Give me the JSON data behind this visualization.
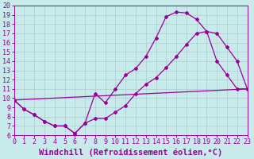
{
  "xlabel": "Windchill (Refroidissement éolien,°C)",
  "xlim": [
    0,
    23
  ],
  "ylim": [
    6,
    20
  ],
  "xticks": [
    0,
    1,
    2,
    3,
    4,
    5,
    6,
    7,
    8,
    9,
    10,
    11,
    12,
    13,
    14,
    15,
    16,
    17,
    18,
    19,
    20,
    21,
    22,
    23
  ],
  "yticks": [
    6,
    7,
    8,
    9,
    10,
    11,
    12,
    13,
    14,
    15,
    16,
    17,
    18,
    19,
    20
  ],
  "background_color": "#c8eaea",
  "line_color": "#990099",
  "grid_color": "#aacccc",
  "line1_x": [
    0,
    1,
    2,
    3,
    4,
    5,
    6,
    7,
    8,
    9,
    10,
    11,
    12,
    13,
    14,
    15,
    16,
    17,
    18,
    19,
    20,
    21,
    22,
    23
  ],
  "line1_y": [
    9.8,
    8.8,
    8.2,
    7.5,
    7.0,
    7.0,
    6.2,
    7.3,
    10.5,
    9.5,
    11.0,
    12.5,
    13.2,
    14.5,
    16.5,
    18.8,
    19.3,
    19.2,
    18.5,
    17.2,
    14.0,
    12.5,
    11.0,
    11.0
  ],
  "line2_x": [
    0,
    1,
    2,
    3,
    4,
    5,
    6,
    7,
    8,
    9,
    10,
    11,
    12,
    13,
    14,
    15,
    16,
    17,
    18,
    19,
    20,
    21,
    22,
    23
  ],
  "line2_y": [
    9.8,
    8.8,
    8.2,
    7.5,
    7.0,
    7.0,
    6.2,
    7.3,
    7.8,
    7.8,
    8.5,
    9.2,
    10.5,
    11.5,
    12.2,
    13.3,
    14.5,
    15.8,
    17.0,
    17.2,
    17.0,
    15.5,
    14.0,
    11.0
  ],
  "line3_x": [
    0,
    23
  ],
  "line3_y": [
    9.8,
    11.0
  ],
  "tick_fontsize": 6,
  "xlabel_fontsize": 7.5
}
